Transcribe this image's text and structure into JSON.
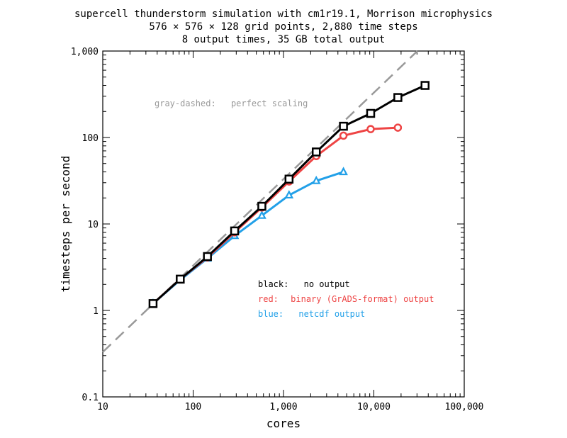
{
  "chart_data": {
    "type": "line",
    "scale": "log-log",
    "title_lines": [
      "supercell thunderstorm simulation with cm1r19.1, Morrison microphysics",
      "576 × 576 × 128 grid points, 2,880 time steps",
      "8 output times, 35 GB total output"
    ],
    "xlabel": "cores",
    "ylabel": "timesteps per second",
    "xlim": [
      10,
      100000
    ],
    "ylim": [
      0.1,
      1000
    ],
    "x_ticks": [
      {
        "value": 10,
        "label": "10"
      },
      {
        "value": 100,
        "label": "100"
      },
      {
        "value": 1000,
        "label": "1,000"
      },
      {
        "value": 10000,
        "label": "10,000"
      },
      {
        "value": 100000,
        "label": "100,000"
      }
    ],
    "y_ticks": [
      {
        "value": 0.1,
        "label": "0.1"
      },
      {
        "value": 1,
        "label": "1"
      },
      {
        "value": 10,
        "label": "10"
      },
      {
        "value": 100,
        "label": "100"
      },
      {
        "value": 1000,
        "label": "1,000"
      }
    ],
    "reference_line": {
      "name": "perfect scaling",
      "color": "#999999",
      "style": "dashed",
      "x": [
        10,
        100000
      ],
      "y": [
        0.33,
        3300
      ]
    },
    "series": [
      {
        "name": "no output",
        "color": "#000000",
        "marker": "square",
        "x": [
          36,
          72,
          144,
          288,
          576,
          1152,
          2304,
          4608,
          9216,
          18432,
          36864
        ],
        "y": [
          1.2,
          2.3,
          4.2,
          8.3,
          16,
          33,
          68,
          135,
          190,
          290,
          400
        ]
      },
      {
        "name": "binary (GrADS-format) output",
        "color": "#ee4444",
        "marker": "circle",
        "x": [
          36,
          72,
          144,
          288,
          576,
          1152,
          2304,
          4608,
          9216,
          18432
        ],
        "y": [
          1.2,
          2.3,
          4.1,
          8.0,
          15.5,
          31,
          61,
          105,
          125,
          130
        ]
      },
      {
        "name": "netcdf output",
        "color": "#22a0e8",
        "marker": "triangle",
        "x": [
          36,
          72,
          144,
          288,
          576,
          1152,
          2304,
          4608
        ],
        "y": [
          1.2,
          2.25,
          4.0,
          7.3,
          12.5,
          21.5,
          31.5,
          40
        ]
      }
    ],
    "annotations": [
      {
        "id": "perfect",
        "color": "#999999",
        "key": "gray-dashed:",
        "text": "perfect scaling"
      },
      {
        "id": "black",
        "color": "#000000",
        "key": "black:",
        "text": "no output"
      },
      {
        "id": "red",
        "color": "#ee4444",
        "key": "red:",
        "text": "binary (GrADS-format) output"
      },
      {
        "id": "blue",
        "color": "#22a0e8",
        "key": "blue:",
        "text": "netcdf output"
      }
    ]
  }
}
